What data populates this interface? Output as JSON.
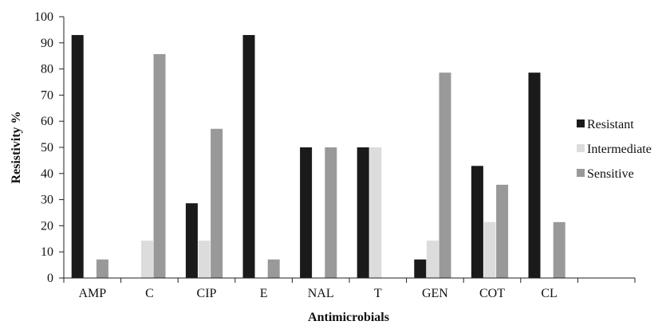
{
  "chart_data": {
    "type": "bar",
    "categories": [
      "AMP",
      "C",
      "CIP",
      "E",
      "NAL",
      "T",
      "GEN",
      "COT",
      "CL"
    ],
    "series": [
      {
        "name": "Resistant",
        "color": "#1a1a1a",
        "values": [
          93,
          0,
          28.6,
          93,
          50,
          50,
          7.1,
          42.9,
          78.6
        ]
      },
      {
        "name": "Intermediate",
        "color": "#dcdcdc",
        "values": [
          0,
          14.3,
          14.3,
          0,
          0,
          50,
          14.3,
          21.4,
          0
        ]
      },
      {
        "name": "Sensitive",
        "color": "#999999",
        "values": [
          7.1,
          85.7,
          57.1,
          7.1,
          50,
          0,
          78.6,
          35.7,
          21.4
        ]
      }
    ],
    "xlabel": "Antimicrobials",
    "ylabel": "Resistivity %",
    "ylim": [
      0,
      100
    ],
    "yticks": [
      0,
      10,
      20,
      30,
      40,
      50,
      60,
      70,
      80,
      90,
      100
    ],
    "grid": false,
    "legend_position": "right"
  }
}
